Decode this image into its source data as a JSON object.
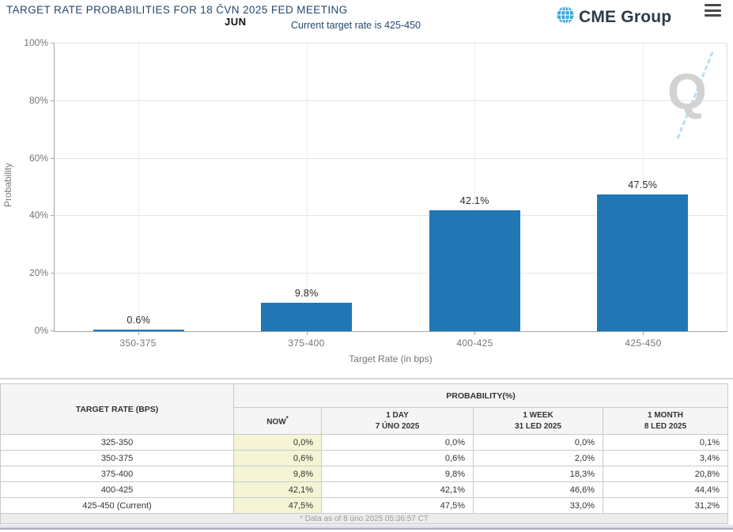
{
  "header": {
    "title": "TARGET RATE PROBABILITIES FOR 18 ČVN 2025 FED MEETING",
    "month_label": "JUN",
    "current_target": "Current target rate is 425-450",
    "logo_text": "CME Group"
  },
  "chart_data": {
    "type": "bar",
    "title": "TARGET RATE PROBABILITIES FOR 18 ČVN 2025 FED MEETING",
    "categories": [
      "350-375",
      "375-400",
      "400-425",
      "425-450"
    ],
    "values": [
      0.6,
      9.8,
      42.1,
      47.5
    ],
    "bar_labels": [
      "0.6%",
      "9.8%",
      "42.1%",
      "47.5%"
    ],
    "xlabel": "Target Rate (in bps)",
    "ylabel": "Probability",
    "ylim": [
      0,
      100
    ],
    "yticks": [
      "0%",
      "20%",
      "40%",
      "60%",
      "80%",
      "100%"
    ],
    "grid": true,
    "legend": false,
    "bar_color": "#2077b4",
    "watermark": "Q"
  },
  "table": {
    "row_header": "TARGET RATE (BPS)",
    "group_header": "PROBABILITY(%)",
    "columns": [
      {
        "label": "NOW",
        "sup": "*",
        "sub": ""
      },
      {
        "label": "1 DAY",
        "sub": "7 ÚNO 2025"
      },
      {
        "label": "1 WEEK",
        "sub": "31 LED 2025"
      },
      {
        "label": "1 MONTH",
        "sub": "8 LED 2025"
      }
    ],
    "rows": [
      {
        "label": "325-350",
        "now": "0,0%",
        "day": "0,0%",
        "week": "0,0%",
        "month": "0,1%"
      },
      {
        "label": "350-375",
        "now": "0,6%",
        "day": "0,6%",
        "week": "2,0%",
        "month": "3,4%"
      },
      {
        "label": "375-400",
        "now": "9,8%",
        "day": "9,8%",
        "week": "18,3%",
        "month": "20,8%"
      },
      {
        "label": "400-425",
        "now": "42,1%",
        "day": "42,1%",
        "week": "46,6%",
        "month": "44,4%"
      },
      {
        "label": "425-450 (Current)",
        "now": "47,5%",
        "day": "47,5%",
        "week": "33,0%",
        "month": "31,2%"
      }
    ],
    "footnote": "* Data as of 8 úno 2025 05:36:57 CT",
    "now_col_bg": "#f5f5d5"
  }
}
